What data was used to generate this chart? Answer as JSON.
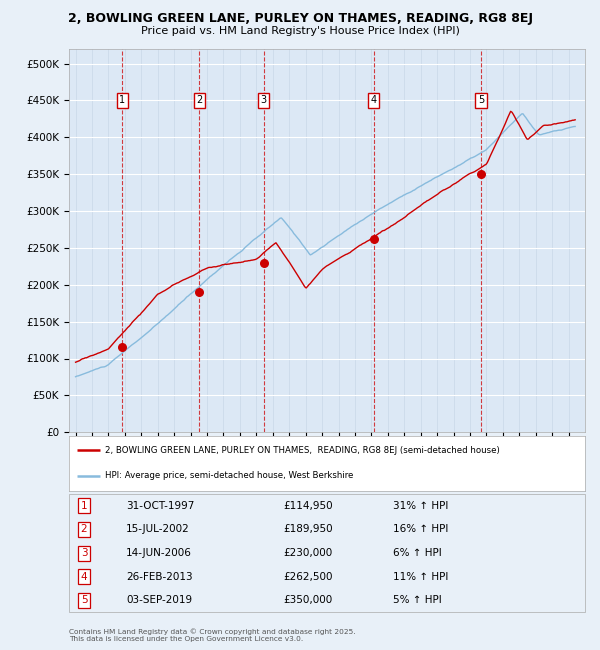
{
  "title1": "2, BOWLING GREEN LANE, PURLEY ON THAMES, READING, RG8 8EJ",
  "title2": "Price paid vs. HM Land Registry's House Price Index (HPI)",
  "ylim": [
    0,
    520000
  ],
  "yticks": [
    0,
    50000,
    100000,
    150000,
    200000,
    250000,
    300000,
    350000,
    400000,
    450000,
    500000
  ],
  "ytick_labels": [
    "£0",
    "£50K",
    "£100K",
    "£150K",
    "£200K",
    "£250K",
    "£300K",
    "£350K",
    "£400K",
    "£450K",
    "£500K"
  ],
  "bg_color": "#e8f0f8",
  "plot_bg": "#dce8f5",
  "red_color": "#cc0000",
  "blue_color": "#88bbdd",
  "sale_dates_x": [
    1997.83,
    2002.54,
    2006.45,
    2013.15,
    2019.67
  ],
  "sale_prices_y": [
    114950,
    189950,
    230000,
    262500,
    350000
  ],
  "sale_labels": [
    "1",
    "2",
    "3",
    "4",
    "5"
  ],
  "legend_line1": "2, BOWLING GREEN LANE, PURLEY ON THAMES,  READING, RG8 8EJ (semi-detached house)",
  "legend_line2": "HPI: Average price, semi-detached house, West Berkshire",
  "table_rows": [
    [
      "1",
      "31-OCT-1997",
      "£114,950",
      "31% ↑ HPI"
    ],
    [
      "2",
      "15-JUL-2002",
      "£189,950",
      "16% ↑ HPI"
    ],
    [
      "3",
      "14-JUN-2006",
      "£230,000",
      "6% ↑ HPI"
    ],
    [
      "4",
      "26-FEB-2013",
      "£262,500",
      "11% ↑ HPI"
    ],
    [
      "5",
      "03-SEP-2019",
      "£350,000",
      "5% ↑ HPI"
    ]
  ],
  "footnote": "Contains HM Land Registry data © Crown copyright and database right 2025.\nThis data is licensed under the Open Government Licence v3.0."
}
